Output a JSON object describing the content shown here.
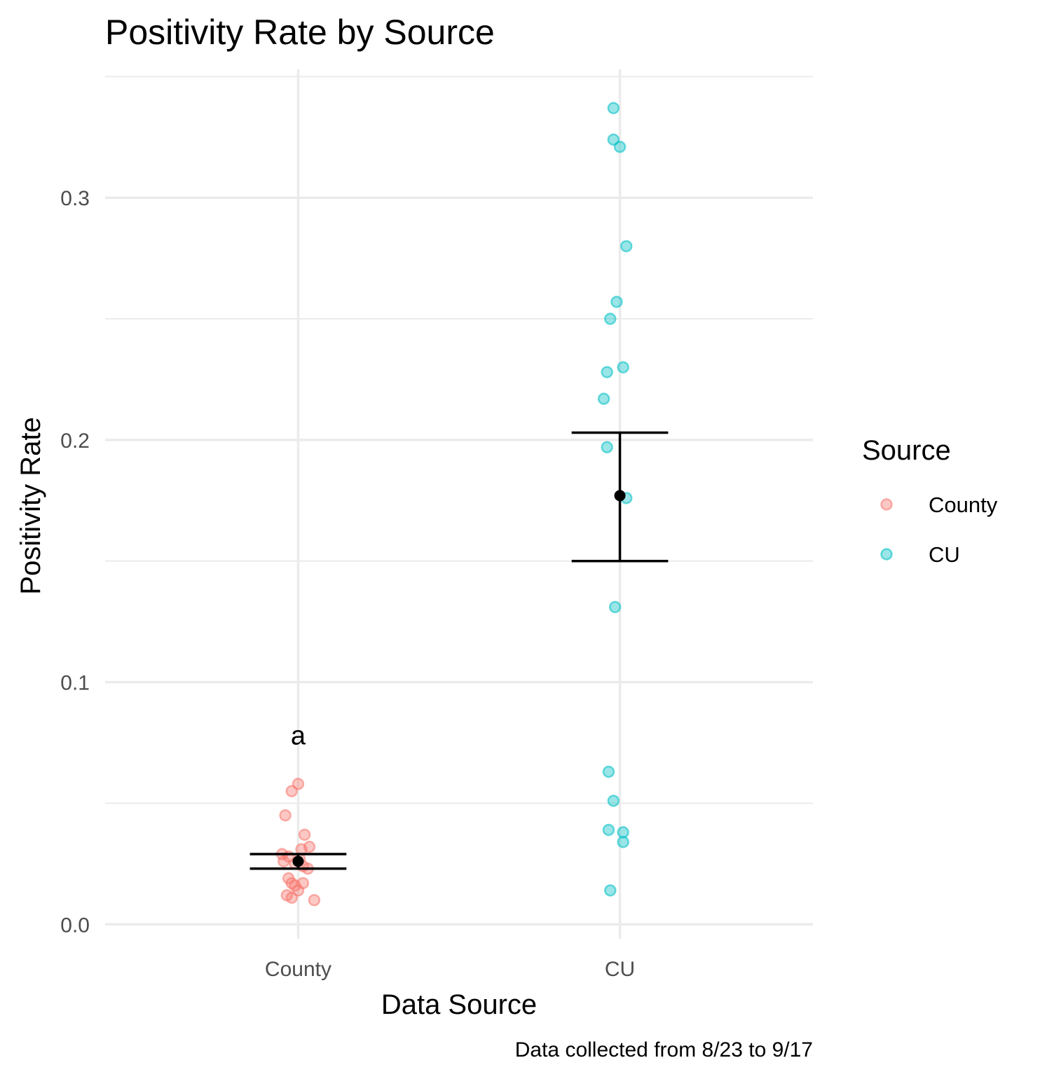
{
  "chart_data": {
    "type": "scatter",
    "title": "Positivity Rate by Source",
    "xlabel": "Data Source",
    "ylabel": "Positivity Rate",
    "caption": "Data collected from 8/23 to 9/17",
    "categories": [
      "County",
      "CU"
    ],
    "ylim": [
      -0.006,
      0.353
    ],
    "yticks": [
      0.0,
      0.1,
      0.2,
      0.3
    ],
    "ytick_labels": [
      "0.0",
      "0.1",
      "0.2",
      "0.3"
    ],
    "grid": true,
    "legend": {
      "title": "Source",
      "position": "right",
      "entries": [
        "County",
        "CU"
      ]
    },
    "colors": {
      "County": "#F8766D",
      "CU": "#00BFC4",
      "summary": "#000000",
      "grid": "#ebebeb"
    },
    "series": [
      {
        "name": "County",
        "points": [
          {
            "x": "County",
            "jitter": 0.0,
            "y": 0.058
          },
          {
            "x": "County",
            "jitter": -0.02,
            "y": 0.055
          },
          {
            "x": "County",
            "jitter": -0.04,
            "y": 0.045
          },
          {
            "x": "County",
            "jitter": 0.02,
            "y": 0.037
          },
          {
            "x": "County",
            "jitter": 0.035,
            "y": 0.032
          },
          {
            "x": "County",
            "jitter": 0.01,
            "y": 0.031
          },
          {
            "x": "County",
            "jitter": -0.05,
            "y": 0.029
          },
          {
            "x": "County",
            "jitter": -0.03,
            "y": 0.028
          },
          {
            "x": "County",
            "jitter": 0.005,
            "y": 0.027
          },
          {
            "x": "County",
            "jitter": -0.045,
            "y": 0.026
          },
          {
            "x": "County",
            "jitter": -0.01,
            "y": 0.025
          },
          {
            "x": "County",
            "jitter": 0.015,
            "y": 0.024
          },
          {
            "x": "County",
            "jitter": 0.03,
            "y": 0.023
          },
          {
            "x": "County",
            "jitter": -0.03,
            "y": 0.019
          },
          {
            "x": "County",
            "jitter": -0.02,
            "y": 0.017
          },
          {
            "x": "County",
            "jitter": 0.015,
            "y": 0.017
          },
          {
            "x": "County",
            "jitter": -0.01,
            "y": 0.016
          },
          {
            "x": "County",
            "jitter": 0.0,
            "y": 0.014
          },
          {
            "x": "County",
            "jitter": -0.035,
            "y": 0.012
          },
          {
            "x": "County",
            "jitter": -0.02,
            "y": 0.011
          },
          {
            "x": "County",
            "jitter": 0.05,
            "y": 0.01
          }
        ]
      },
      {
        "name": "CU",
        "points": [
          {
            "x": "CU",
            "jitter": -0.02,
            "y": 0.337
          },
          {
            "x": "CU",
            "jitter": -0.02,
            "y": 0.324
          },
          {
            "x": "CU",
            "jitter": 0.0,
            "y": 0.321
          },
          {
            "x": "CU",
            "jitter": 0.02,
            "y": 0.28
          },
          {
            "x": "CU",
            "jitter": -0.01,
            "y": 0.257
          },
          {
            "x": "CU",
            "jitter": -0.03,
            "y": 0.25
          },
          {
            "x": "CU",
            "jitter": 0.01,
            "y": 0.23
          },
          {
            "x": "CU",
            "jitter": -0.04,
            "y": 0.228
          },
          {
            "x": "CU",
            "jitter": -0.05,
            "y": 0.217
          },
          {
            "x": "CU",
            "jitter": -0.04,
            "y": 0.197
          },
          {
            "x": "CU",
            "jitter": 0.02,
            "y": 0.176
          },
          {
            "x": "CU",
            "jitter": -0.015,
            "y": 0.131
          },
          {
            "x": "CU",
            "jitter": -0.035,
            "y": 0.063
          },
          {
            "x": "CU",
            "jitter": -0.02,
            "y": 0.051
          },
          {
            "x": "CU",
            "jitter": -0.035,
            "y": 0.039
          },
          {
            "x": "CU",
            "jitter": 0.01,
            "y": 0.038
          },
          {
            "x": "CU",
            "jitter": 0.01,
            "y": 0.034
          },
          {
            "x": "CU",
            "jitter": -0.03,
            "y": 0.014
          }
        ]
      }
    ],
    "summary": [
      {
        "x": "County",
        "mean": 0.026,
        "lower": 0.023,
        "upper": 0.029
      },
      {
        "x": "CU",
        "mean": 0.177,
        "lower": 0.15,
        "upper": 0.203
      }
    ],
    "annotations": [
      {
        "x": "County",
        "y": 0.078,
        "text": "a"
      }
    ]
  }
}
